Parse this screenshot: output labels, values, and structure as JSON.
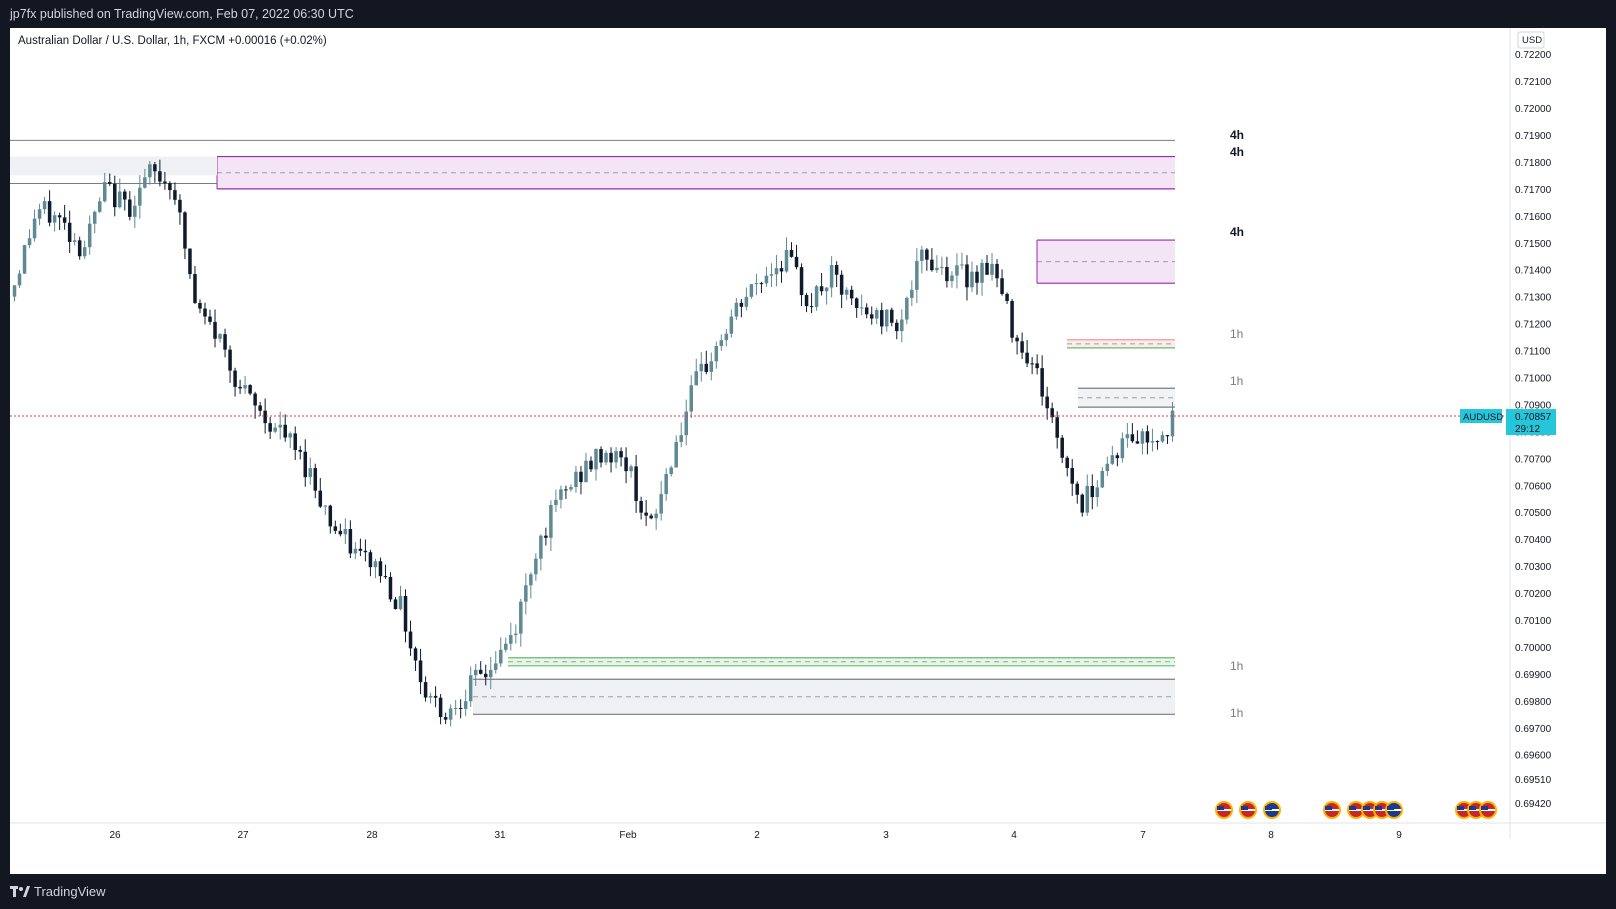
{
  "header": {
    "publish_text": "jp7fx published on TradingView.com, Feb 07, 2022 06:30 UTC"
  },
  "legend": {
    "text": "Australian Dollar / U.S. Dollar, 1h, FXCM  +0.00016 (+0.02%)"
  },
  "footer": {
    "brand": "TradingView"
  },
  "price_scale": {
    "currency": "USD",
    "ticks": [
      "0.72200",
      "0.72100",
      "0.72000",
      "0.71900",
      "0.71800",
      "0.71700",
      "0.71600",
      "0.71500",
      "0.71400",
      "0.71300",
      "0.71200",
      "0.71100",
      "0.71000",
      "0.70900",
      "0.70800",
      "0.70700",
      "0.70600",
      "0.70500",
      "0.70400",
      "0.70300",
      "0.70200",
      "0.70100",
      "0.70000",
      "0.69900",
      "0.69800",
      "0.69700",
      "0.69600",
      "0.69510",
      "0.69420"
    ]
  },
  "time_scale": {
    "labels": [
      "26",
      "27",
      "28",
      "31",
      "Feb",
      "2",
      "3",
      "4",
      "7",
      "8",
      "9"
    ]
  },
  "current_price": {
    "symbol": "AUDUSD",
    "price": "0.70857",
    "countdown": "29:12",
    "color": "#26c6da"
  },
  "zone_labels": [
    "4h",
    "4h",
    "4h",
    "1h",
    "1h",
    "1h",
    "1h"
  ],
  "colors": {
    "up": "#5f8a93",
    "down": "#0f1b2d",
    "supply": "#9c27b0",
    "demand_green": "#66bb6a",
    "demand_red": "#ef9a9a",
    "price_line": "#f23645"
  },
  "icons": [
    "us-flag-event-icon",
    "us-flag-event-icon",
    "au-flag-event-icon",
    "us-flag-event-icon",
    "us-flag-event-icon",
    "us-flag-event-icon",
    "us-flag-event-icon",
    "au-flag-event-icon",
    "us-flag-event-icon",
    "us-flag-event-icon",
    "us-flag-event-icon"
  ],
  "chart_data": {
    "type": "candlestick",
    "symbol": "AUDUSD",
    "timeframe": "1h",
    "ylim": [
      0.6938,
      0.7226
    ],
    "anchors": [
      [
        0.714,
        0.713
      ],
      [
        0.7165,
        0.716
      ],
      [
        0.7162,
        0.7155
      ],
      [
        0.715,
        0.7145
      ],
      [
        0.7172,
        0.7168
      ],
      [
        0.7166,
        0.716
      ],
      [
        0.718,
        0.7172
      ],
      [
        0.7175,
        0.7168
      ],
      [
        0.713,
        0.712
      ],
      [
        0.712,
        0.711
      ],
      [
        0.71,
        0.709
      ],
      [
        0.709,
        0.708
      ],
      [
        0.708,
        0.7075
      ],
      [
        0.707,
        0.706
      ],
      [
        0.705,
        0.704
      ],
      [
        0.704,
        0.703
      ],
      [
        0.7035,
        0.7025
      ],
      [
        0.702,
        0.701
      ],
      [
        0.699,
        0.698
      ],
      [
        0.698,
        0.697
      ],
      [
        0.6988,
        0.6982
      ],
      [
        0.6995,
        0.699
      ],
      [
        0.701,
        0.7
      ],
      [
        0.704,
        0.7035
      ],
      [
        0.706,
        0.705
      ],
      [
        0.707,
        0.706
      ],
      [
        0.7075,
        0.707
      ],
      [
        0.707,
        0.7065
      ],
      [
        0.7045,
        0.704
      ],
      [
        0.7075,
        0.707
      ],
      [
        0.71,
        0.7095
      ],
      [
        0.7115,
        0.711
      ],
      [
        0.713,
        0.7125
      ],
      [
        0.714,
        0.7135
      ],
      [
        0.715,
        0.714
      ],
      [
        0.713,
        0.7125
      ],
      [
        0.714,
        0.7135
      ],
      [
        0.713,
        0.712
      ],
      [
        0.7125,
        0.712
      ],
      [
        0.7125,
        0.7118
      ],
      [
        0.715,
        0.714
      ],
      [
        0.7145,
        0.7135
      ],
      [
        0.714,
        0.7135
      ],
      [
        0.7145,
        0.714
      ],
      [
        0.712,
        0.7115
      ],
      [
        0.7105,
        0.71
      ],
      [
        0.708,
        0.707
      ],
      [
        0.7055,
        0.705
      ],
      [
        0.707,
        0.7065
      ],
      [
        0.708,
        0.7075
      ],
      [
        0.708,
        0.7075
      ],
      [
        0.7085,
        0.7082
      ]
    ],
    "swing_marks": [
      [
        0.7178,
        0.7172
      ],
      [
        0.71,
        0.7095
      ],
      [
        0.697,
        0.6968
      ],
      [
        0.7165,
        0.7155
      ],
      [
        0.7045,
        0.7035
      ],
      [
        0.7168,
        0.715
      ],
      [
        0.7055,
        0.7052
      ]
    ],
    "zones": [
      {
        "tf": "4h",
        "type": "line",
        "price": 0.7188
      },
      {
        "tf": "4h",
        "type": "supply",
        "top": 0.7182,
        "bottom": 0.717
      },
      {
        "tf": "4h",
        "type": "supply",
        "top": 0.7151,
        "bottom": 0.7135
      },
      {
        "tf": "1h",
        "type": "supply",
        "top": 0.7114,
        "bottom": 0.7111
      },
      {
        "tf": "1h",
        "type": "zone",
        "top": 0.7096,
        "bottom": 0.7089
      },
      {
        "tf": "1h",
        "type": "demand",
        "top": 0.6996,
        "bottom": 0.6993
      },
      {
        "tf": "1h",
        "type": "demand",
        "top": 0.6988,
        "bottom": 0.6975
      }
    ],
    "last_price": 0.70857
  }
}
